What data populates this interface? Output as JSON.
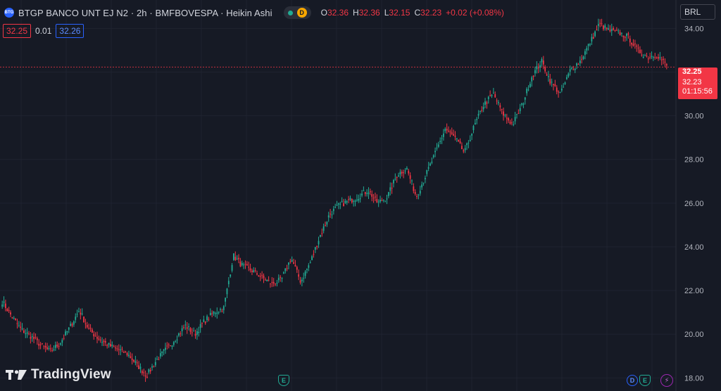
{
  "header": {
    "symbol_logo": "BTG",
    "title": "BTGP BANCO UNT EJ N2 · 2h · BMFBOVESPA · Heikin Ashi",
    "market_badge": "D",
    "ohlc": {
      "o_label": "O",
      "o_value": "32.36",
      "h_label": "H",
      "h_value": "32.36",
      "l_label": "L",
      "l_value": "32.15",
      "c_label": "C",
      "c_value": "32.23",
      "change": "+0.02 (+0.08%)"
    }
  },
  "quotes": {
    "bid": "32.25",
    "spread": "0.01",
    "ask": "32.26"
  },
  "currency": "BRL",
  "price_tags": {
    "high": "32.25",
    "last": "32.23",
    "countdown": "01:15:56"
  },
  "branding": {
    "logo_text": "TradingView"
  },
  "events": {
    "earnings": "E",
    "dividend": "D"
  },
  "colors": {
    "up": "#22ab94",
    "down": "#f23645",
    "background": "#161a25",
    "grid": "#1f2330"
  },
  "chart_data": {
    "type": "candlestick",
    "chart_style": "Heikin Ashi",
    "ylim": [
      17.4,
      35.3
    ],
    "y_ticks": [
      18.0,
      20.0,
      22.0,
      24.0,
      26.0,
      28.0,
      30.0,
      32.0,
      34.0
    ],
    "grid": true,
    "last_price": 32.23,
    "approx_close_path": [
      21.5,
      20.8,
      20.2,
      19.9,
      19.5,
      19.2,
      19.6,
      20.3,
      21.1,
      20.2,
      19.8,
      19.5,
      19.3,
      19.1,
      18.6,
      18.1,
      18.8,
      19.3,
      19.8,
      20.4,
      20.0,
      20.6,
      21.0,
      21.2,
      23.6,
      23.1,
      22.9,
      22.6,
      22.3,
      22.5,
      23.5,
      22.4,
      23.3,
      24.5,
      25.5,
      25.9,
      26.1,
      26.3,
      26.6,
      26.0,
      26.3,
      27.3,
      27.6,
      26.3,
      27.3,
      28.3,
      29.4,
      29.0,
      28.3,
      29.5,
      30.5,
      31.0,
      30.1,
      29.6,
      30.5,
      31.8,
      32.5,
      31.5,
      31.0,
      32.1,
      32.5,
      33.3,
      34.2,
      33.9,
      33.8,
      33.6,
      33.0,
      32.7,
      32.8,
      32.3
    ]
  }
}
